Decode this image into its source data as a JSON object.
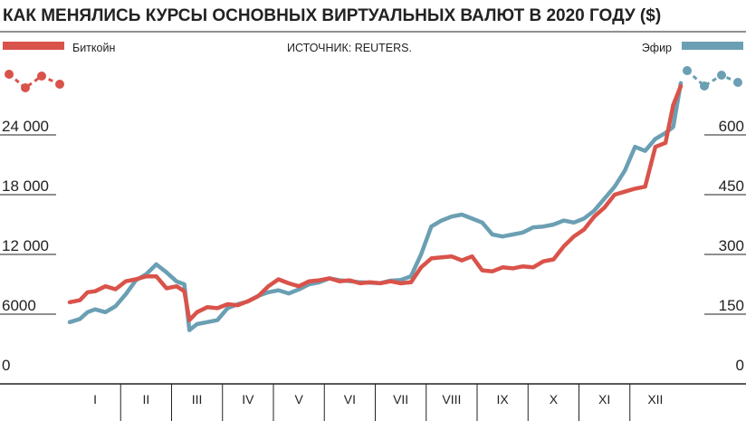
{
  "chart_data": {
    "type": "line",
    "title": "КАК МЕНЯЛИСЬ КУРСЫ ОСНОВНЫХ ВИРТУАЛЬНЫХ ВАЛЮТ В 2020 ГОДУ ($)",
    "source": "ИСТОЧНИК: REUTERS.",
    "legend": {
      "left": "Биткойн",
      "right": "Эфир"
    },
    "colors": {
      "bitcoin": "#d9534a",
      "ether": "#6b9fb3",
      "axis": "#222222"
    },
    "x_axis": {
      "range": [
        0,
        12
      ],
      "months": [
        "I",
        "II",
        "III",
        "IV",
        "V",
        "VI",
        "VII",
        "VIII",
        "IX",
        "X",
        "XI",
        "XII"
      ]
    },
    "left_axis": {
      "series": "Биткойн",
      "range": [
        0,
        30000
      ],
      "ticks": [
        0,
        6000,
        12000,
        18000,
        24000
      ],
      "tick_labels": [
        "0",
        "6000",
        "12 000",
        "18 000",
        "24 000"
      ]
    },
    "right_axis": {
      "series": "Эфир",
      "range": [
        0,
        750
      ],
      "ticks": [
        0,
        150,
        300,
        450,
        600
      ],
      "tick_labels": [
        "0",
        "150",
        "300",
        "450",
        "600"
      ]
    },
    "series": [
      {
        "name": "Биткойн",
        "axis": "left",
        "x": [
          0.0,
          0.2,
          0.35,
          0.5,
          0.7,
          0.9,
          1.1,
          1.3,
          1.5,
          1.7,
          1.9,
          2.1,
          2.25,
          2.35,
          2.5,
          2.7,
          2.9,
          3.1,
          3.3,
          3.5,
          3.7,
          3.9,
          4.1,
          4.3,
          4.5,
          4.7,
          4.9,
          5.1,
          5.3,
          5.5,
          5.7,
          5.9,
          6.1,
          6.3,
          6.5,
          6.7,
          6.9,
          7.1,
          7.3,
          7.5,
          7.7,
          7.9,
          8.1,
          8.3,
          8.5,
          8.7,
          8.9,
          9.1,
          9.3,
          9.5,
          9.7,
          9.9,
          10.1,
          10.3,
          10.5,
          10.7,
          10.9,
          11.1,
          11.3,
          11.5,
          11.7,
          11.85,
          12.0
        ],
        "values": [
          7200,
          7400,
          8200,
          8300,
          8800,
          8500,
          9300,
          9500,
          9800,
          9800,
          8600,
          8800,
          8300,
          5400,
          6200,
          6700,
          6600,
          7000,
          6900,
          7300,
          7800,
          8800,
          9500,
          9100,
          8800,
          9300,
          9400,
          9600,
          9300,
          9400,
          9100,
          9200,
          9100,
          9300,
          9100,
          9200,
          10700,
          11600,
          11700,
          11800,
          11400,
          11800,
          10400,
          10300,
          10700,
          10600,
          10800,
          10700,
          11300,
          11500,
          12800,
          13800,
          14500,
          15800,
          16700,
          18000,
          18300,
          18600,
          18800,
          22800,
          23200,
          27000,
          28900
        ]
      },
      {
        "name": "Эфир",
        "axis": "right",
        "x": [
          0.0,
          0.2,
          0.35,
          0.5,
          0.7,
          0.9,
          1.1,
          1.3,
          1.5,
          1.7,
          1.9,
          2.1,
          2.25,
          2.35,
          2.5,
          2.7,
          2.9,
          3.1,
          3.3,
          3.5,
          3.7,
          3.9,
          4.1,
          4.3,
          4.5,
          4.7,
          4.9,
          5.1,
          5.3,
          5.5,
          5.7,
          5.9,
          6.1,
          6.3,
          6.5,
          6.7,
          6.9,
          7.1,
          7.3,
          7.5,
          7.7,
          7.9,
          8.1,
          8.3,
          8.5,
          8.7,
          8.9,
          9.1,
          9.3,
          9.5,
          9.7,
          9.9,
          10.1,
          10.3,
          10.5,
          10.7,
          10.9,
          11.1,
          11.3,
          11.5,
          11.7,
          11.85,
          12.0
        ],
        "values": [
          130,
          138,
          155,
          162,
          155,
          170,
          200,
          235,
          250,
          275,
          255,
          232,
          225,
          110,
          125,
          130,
          135,
          165,
          175,
          182,
          196,
          205,
          210,
          202,
          212,
          225,
          230,
          240,
          235,
          233,
          230,
          229,
          228,
          234,
          236,
          245,
          300,
          370,
          385,
          395,
          400,
          390,
          380,
          350,
          345,
          350,
          355,
          368,
          370,
          375,
          385,
          380,
          390,
          410,
          440,
          470,
          510,
          570,
          560,
          590,
          605,
          620,
          730
        ]
      }
    ]
  }
}
